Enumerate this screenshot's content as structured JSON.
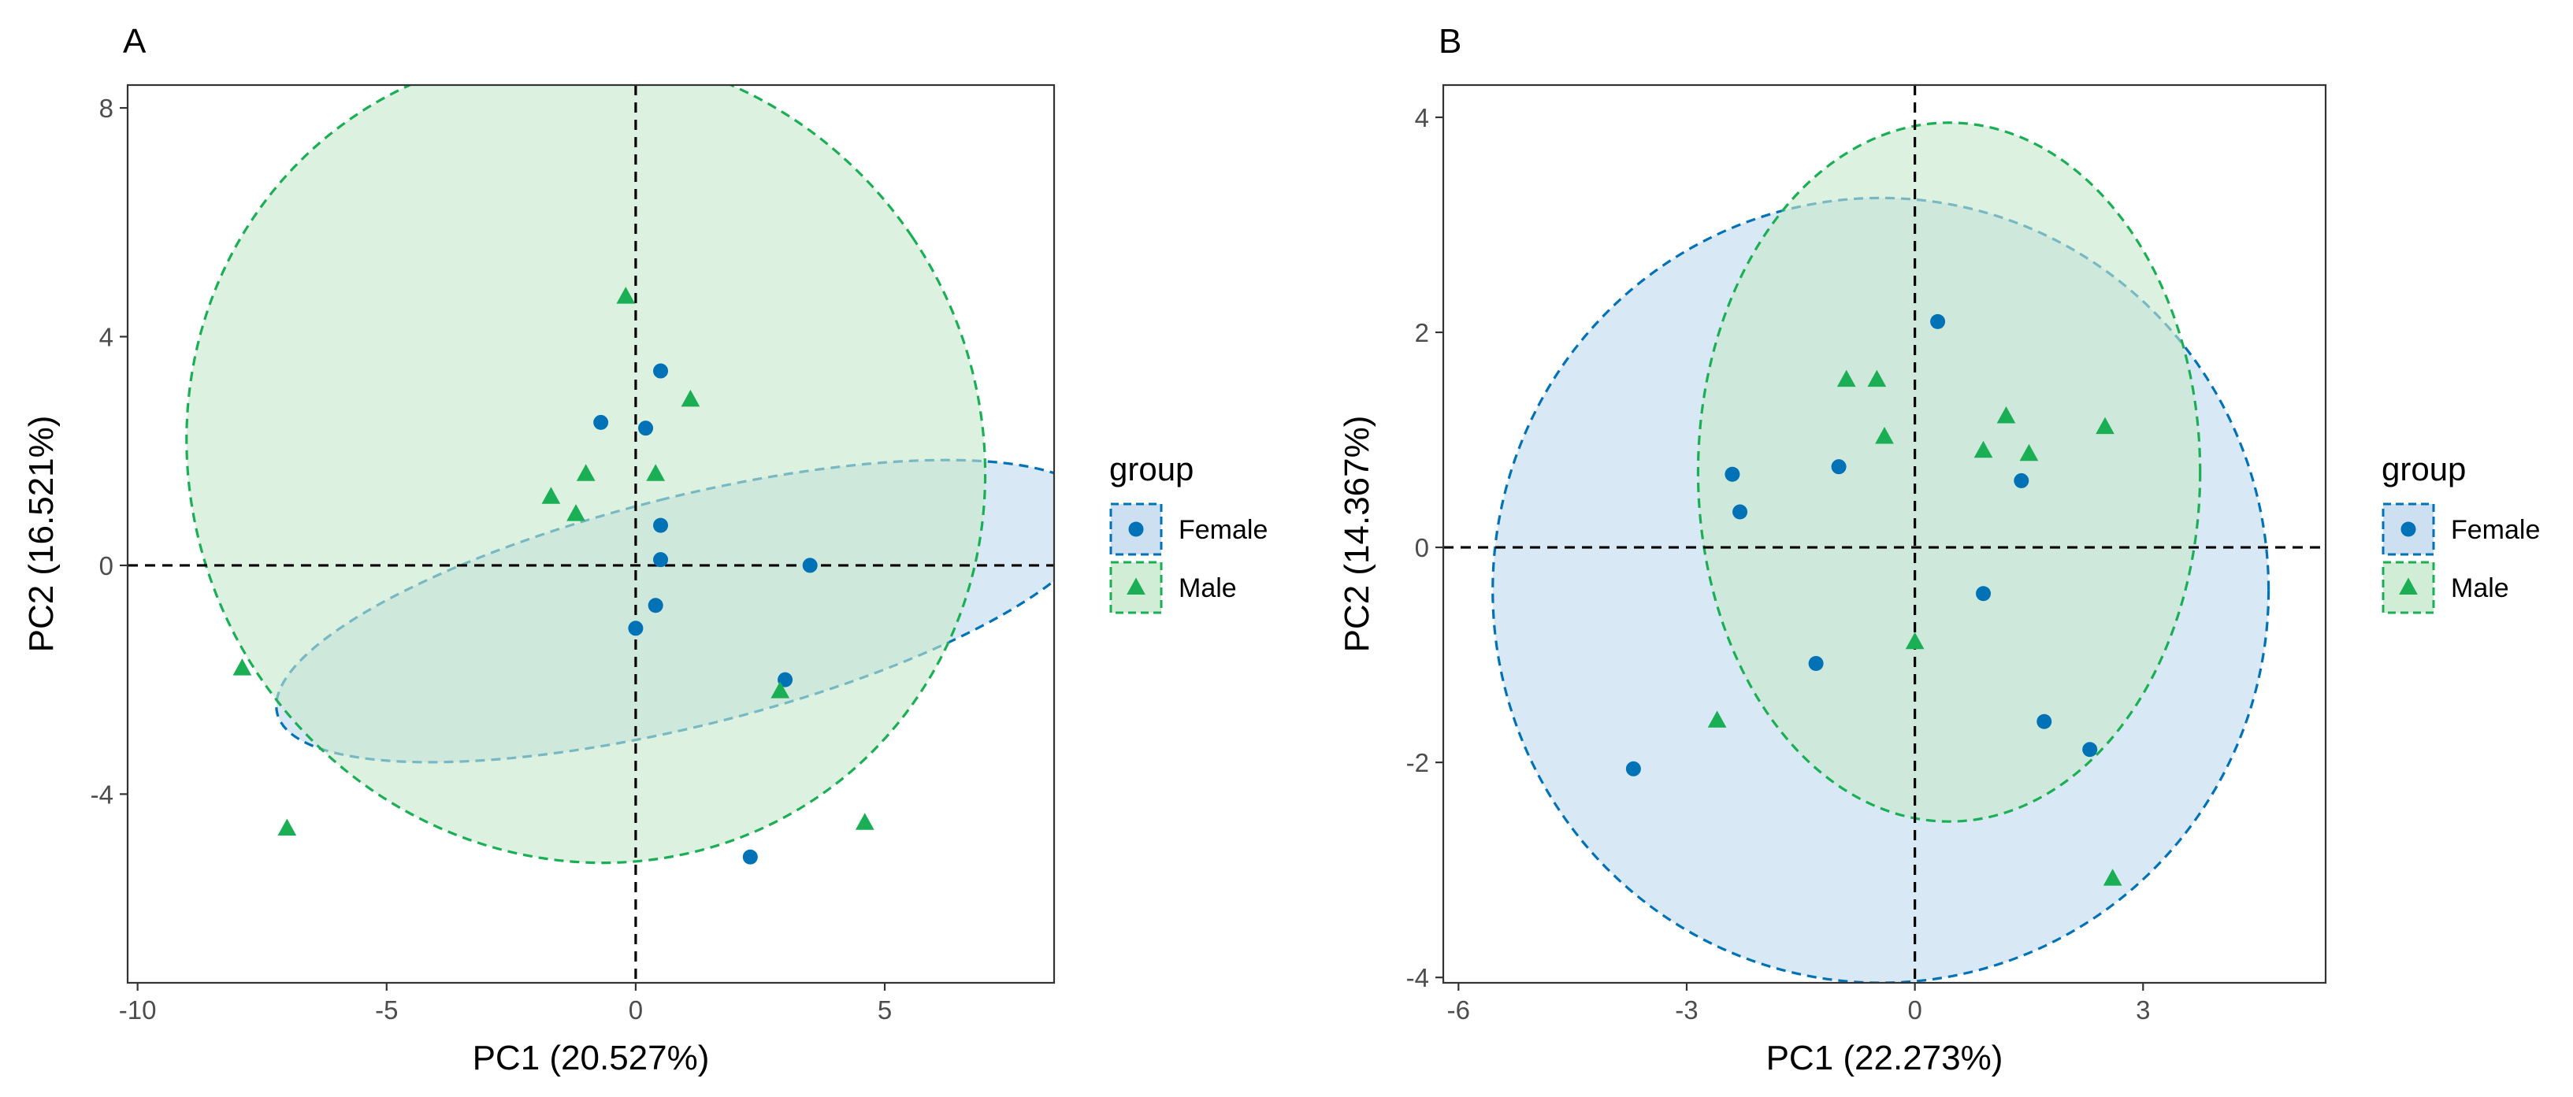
{
  "chart_data": [
    {
      "type": "scatter",
      "panel_label": "A",
      "xlabel": "PC1 (20.527%)",
      "ylabel": "PC2 (16.521%)",
      "xlim": [
        -10.2,
        8.4
      ],
      "ylim": [
        -7.3,
        8.4
      ],
      "xticks": [
        -10,
        -5,
        0,
        5
      ],
      "xtick_labels": [
        "-10",
        "-5",
        "0",
        "5"
      ],
      "yticks": [
        -4,
        0,
        4,
        8
      ],
      "ytick_labels": [
        "-4",
        "0",
        "4",
        "8"
      ],
      "legend": {
        "title": "group",
        "placement": "right"
      },
      "series": [
        {
          "name": "Female",
          "marker": "circle",
          "color": "#0072B5",
          "fill": "#BFD8EE",
          "points": [
            [
              -0.7,
              2.5
            ],
            [
              0.2,
              2.4
            ],
            [
              0.5,
              3.4
            ],
            [
              0.5,
              0.7
            ],
            [
              0.5,
              0.1
            ],
            [
              0.4,
              -0.7
            ],
            [
              0.0,
              -1.1
            ],
            [
              3.5,
              0.0
            ],
            [
              3.0,
              -2.0
            ],
            [
              2.3,
              -5.1
            ]
          ],
          "ellipse": {
            "center": [
              1.05,
              -0.8
            ],
            "semi_axes": [
              2.3,
              7.4
            ],
            "angle_deg": -104
          }
        },
        {
          "name": "Male",
          "marker": "triangle",
          "color": "#1AAF54",
          "fill": "#C6E8CB",
          "points": [
            [
              -0.2,
              4.7
            ],
            [
              1.1,
              2.9
            ],
            [
              -1.0,
              1.6
            ],
            [
              0.4,
              1.6
            ],
            [
              -1.7,
              1.2
            ],
            [
              -1.2,
              0.9
            ],
            [
              -7.9,
              -1.8
            ],
            [
              -7.0,
              -4.6
            ],
            [
              2.9,
              -2.2
            ],
            [
              4.6,
              -4.5
            ]
          ],
          "ellipse": {
            "center": [
              -1.0,
              1.9
            ],
            "semi_axes": [
              7.9,
              7.2
            ],
            "angle_deg": -34
          }
        }
      ]
    },
    {
      "type": "scatter",
      "panel_label": "B",
      "xlabel": "PC1 (22.273%)",
      "ylabel": "PC2 (14.367%)",
      "xlim": [
        -6.2,
        5.4
      ],
      "ylim": [
        -4.05,
        4.3
      ],
      "xticks": [
        -6,
        -3,
        0,
        3
      ],
      "xtick_labels": [
        "-6",
        "-3",
        "0",
        "3"
      ],
      "yticks": [
        -4,
        -2,
        0,
        2,
        4
      ],
      "ytick_labels": [
        "-4",
        "-2",
        "0",
        "2",
        "4"
      ],
      "legend": {
        "title": "group",
        "placement": "right"
      },
      "series": [
        {
          "name": "Female",
          "marker": "circle",
          "color": "#0072B5",
          "fill": "#BFD8EE",
          "points": [
            [
              0.3,
              2.1
            ],
            [
              -1.0,
              0.75
            ],
            [
              -2.4,
              0.68
            ],
            [
              -2.3,
              0.33
            ],
            [
              1.4,
              0.62
            ],
            [
              0.9,
              -0.43
            ],
            [
              -1.3,
              -1.08
            ],
            [
              1.7,
              -1.62
            ],
            [
              2.3,
              -1.88
            ],
            [
              -3.7,
              -2.06
            ]
          ],
          "ellipse": {
            "center": [
              -0.45,
              -0.4
            ],
            "semi_axes": [
              5.1,
              3.65
            ],
            "angle_deg": 0
          }
        },
        {
          "name": "Male",
          "marker": "triangle",
          "color": "#1AAF54",
          "fill": "#C6E8CB",
          "points": [
            [
              -0.9,
              1.56
            ],
            [
              -0.5,
              1.56
            ],
            [
              -0.4,
              1.03
            ],
            [
              1.2,
              1.22
            ],
            [
              0.9,
              0.9
            ],
            [
              1.5,
              0.87
            ],
            [
              2.5,
              1.12
            ],
            [
              0.0,
              -0.88
            ],
            [
              -2.6,
              -1.61
            ],
            [
              2.6,
              -3.08
            ]
          ],
          "ellipse": {
            "center": [
              0.45,
              0.7
            ],
            "semi_axes": [
              3.3,
              3.25
            ],
            "angle_deg": 0
          }
        }
      ]
    }
  ]
}
